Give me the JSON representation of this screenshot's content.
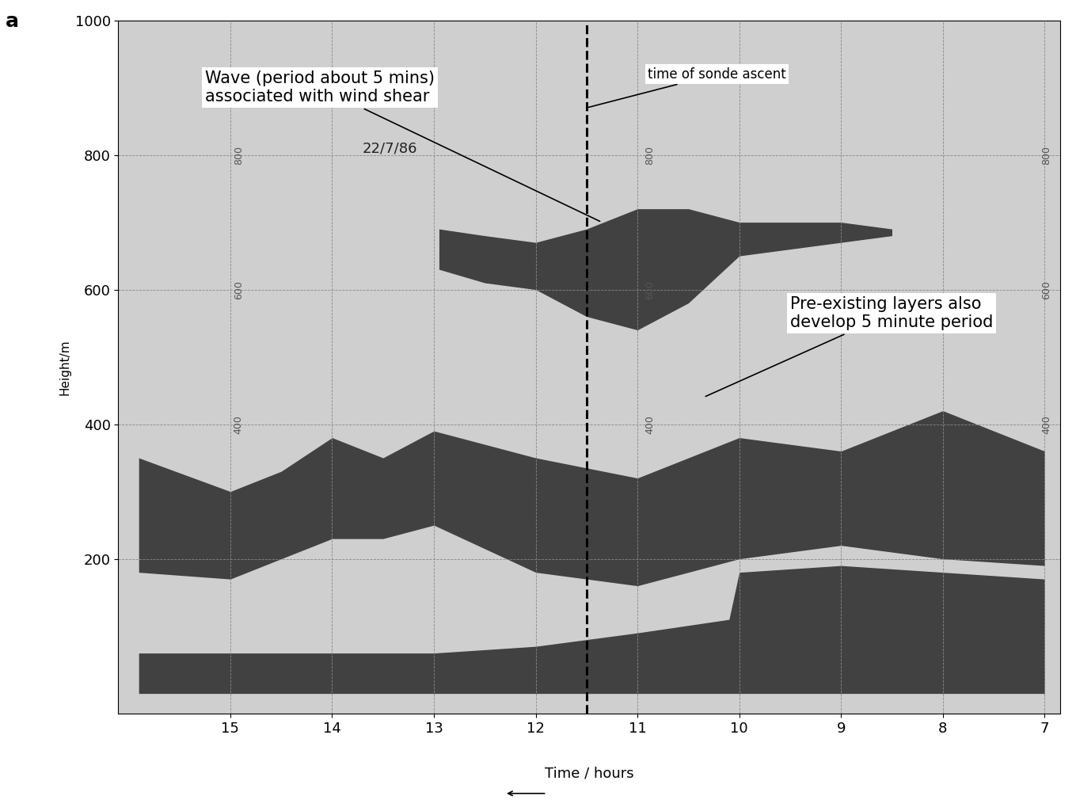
{
  "chart_data": {
    "type": "echogram",
    "panel_label": "a",
    "date": "22/7/86",
    "xlabel": "Time / hours",
    "ylabel": "Height/m",
    "xlim": [
      16.1,
      6.85
    ],
    "xticks": [
      15,
      14,
      13,
      12,
      11,
      10,
      9,
      8,
      7
    ],
    "ylim": [
      -30,
      1000
    ],
    "yticks": [
      200,
      400,
      600,
      800,
      1000
    ],
    "grid": true,
    "color": "#111111",
    "sonde_ascent_time": 11.5,
    "annotations": [
      "Wave (period about 5 mins)\nassociated with wind shear",
      "time of sonde ascent",
      "Pre-existing layers also\ndevelop 5 minute period"
    ],
    "paper_labels": {
      "x": [
        14.92,
        10.88,
        6.98
      ],
      "heights": [
        400,
        600,
        800
      ]
    },
    "layers": [
      {
        "x": [
          15.9,
          15,
          14,
          13,
          12,
          11,
          10.1,
          10,
          9,
          8,
          7
        ],
        "bottom": [
          0,
          0,
          0,
          0,
          0,
          0,
          0,
          0,
          0,
          0,
          0
        ],
        "top": [
          60,
          60,
          60,
          60,
          70,
          90,
          110,
          180,
          190,
          180,
          170
        ]
      },
      {
        "x": [
          15.9,
          15,
          14.5,
          14,
          13.5,
          13,
          12,
          11,
          10,
          9,
          8,
          7
        ],
        "bottom": [
          180,
          170,
          200,
          230,
          230,
          250,
          180,
          160,
          200,
          220,
          200,
          190
        ],
        "top": [
          350,
          300,
          330,
          380,
          350,
          390,
          350,
          320,
          380,
          360,
          420,
          360
        ]
      },
      {
        "x": [
          12.95,
          12.5,
          12,
          11.5,
          11,
          10.5,
          10,
          9.5,
          9,
          8.5
        ],
        "bottom": [
          630,
          610,
          600,
          560,
          540,
          580,
          650,
          660,
          670,
          680
        ],
        "top": [
          690,
          680,
          670,
          690,
          720,
          720,
          700,
          700,
          700,
          690
        ]
      }
    ]
  }
}
